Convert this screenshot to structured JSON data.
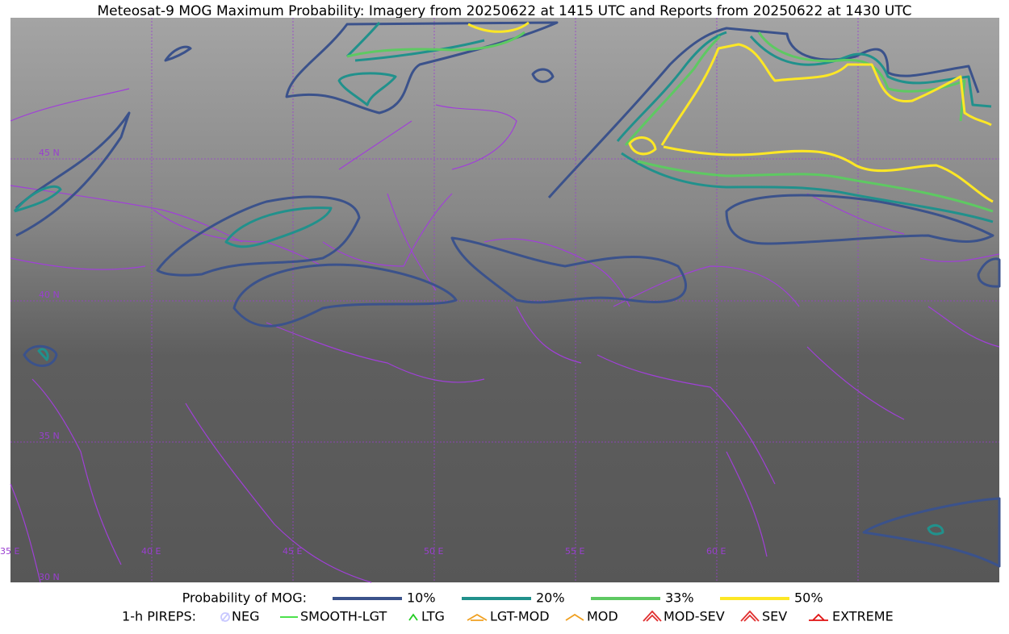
{
  "title": "Meteosat-9 MOG Maximum Probability: Imagery from 20250622 at 1415 UTC and Reports from 20250622 at 1430 UTC",
  "map": {
    "lat_labels": [
      "45 N",
      "40 N",
      "35 N",
      "30 N"
    ],
    "lon_labels": [
      "35 E",
      "40 E",
      "45 E",
      "50 E",
      "55 E",
      "60 E"
    ]
  },
  "legend": {
    "probability": {
      "label": "Probability of MOG:",
      "items": [
        {
          "label": "10%",
          "color": "#3b528b"
        },
        {
          "label": "20%",
          "color": "#21918c"
        },
        {
          "label": "33%",
          "color": "#5ec962"
        },
        {
          "label": "50%",
          "color": "#fde725"
        }
      ]
    },
    "pireps": {
      "label": "1-h PIREPS:",
      "items": [
        {
          "label": "NEG",
          "color": "#c8c8ff"
        },
        {
          "label": "SMOOTH-LGT",
          "color": "#33dd33"
        },
        {
          "label": "LTG",
          "color": "#22cc22"
        },
        {
          "label": "LGT-MOD",
          "color": "#f0a020"
        },
        {
          "label": "MOD",
          "color": "#f0a020"
        },
        {
          "label": "MOD-SEV",
          "color": "#e03030"
        },
        {
          "label": "SEV",
          "color": "#e03030"
        },
        {
          "label": "EXTREME",
          "color": "#e01010"
        }
      ]
    }
  }
}
